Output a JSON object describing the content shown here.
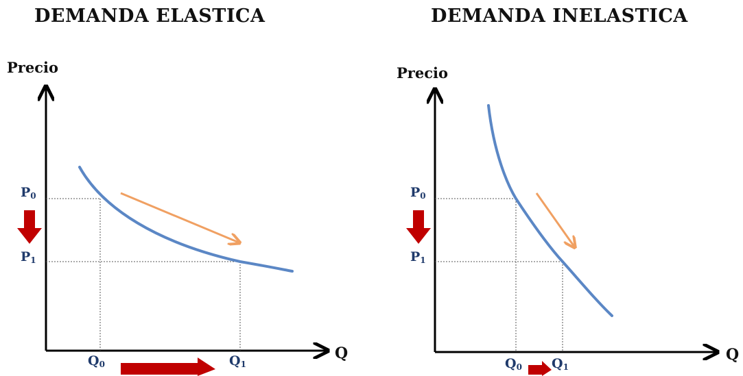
{
  "left_panel": {
    "title": "DEMANDA ELASTICA",
    "y_axis_label": "Precio",
    "x_axis_label": "Q",
    "price_labels": {
      "p0": "P",
      "p0_sub": "0",
      "p1": "P",
      "p1_sub": "1"
    },
    "quantity_labels": {
      "q0": "Q",
      "q0_sub": "0",
      "q1": "Q",
      "q1_sub": "1"
    }
  },
  "right_panel": {
    "title": "DEMANDA INELASTICA",
    "y_axis_label": "Precio",
    "x_axis_label": "Q",
    "price_labels": {
      "p0": "P",
      "p0_sub": "0",
      "p1": "P",
      "p1_sub": "1"
    },
    "quantity_labels": {
      "q0": "Q",
      "q0_sub": "0",
      "q1": "Q",
      "q1_sub": "1"
    }
  },
  "colors": {
    "demand_curve": "#5b87c5",
    "movement_arrow": "#f0a062",
    "change_arrow": "#c00000",
    "axis": "#000000",
    "label": "#1f3a6b"
  }
}
